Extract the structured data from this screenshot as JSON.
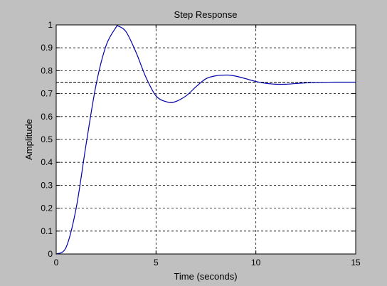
{
  "window": {
    "background": "#c0c0c0"
  },
  "chart_data": {
    "type": "line",
    "title": "Step Response",
    "xlabel": "Time (seconds)",
    "ylabel": "Amplitude",
    "xlim": [
      0,
      15
    ],
    "ylim": [
      0,
      1
    ],
    "xticks": [
      0,
      5,
      10,
      15
    ],
    "xtick_labels": [
      "0",
      "5",
      "10",
      "15"
    ],
    "yticks": [
      0,
      0.1,
      0.2,
      0.3,
      0.4,
      0.5,
      0.6,
      0.7,
      0.8,
      0.9,
      1
    ],
    "ytick_labels": [
      "0",
      "0.1",
      "0.2",
      "0.3",
      "0.4",
      "0.5",
      "0.6",
      "0.7",
      "0.8",
      "0.9",
      "1"
    ],
    "grid": true,
    "series": [
      {
        "color": "#0000aa",
        "x": [
          0,
          0.5,
          1.0,
          1.5,
          2.0,
          2.5,
          3.0,
          3.1,
          3.5,
          4.0,
          4.5,
          5.0,
          5.5,
          5.9,
          6.5,
          7.0,
          7.5,
          8.0,
          8.6,
          9.0,
          9.5,
          10.0,
          10.5,
          11.0,
          11.5,
          12.0,
          12.5,
          13.0,
          14.0,
          15.0
        ],
        "y": [
          0,
          0.03,
          0.2,
          0.48,
          0.74,
          0.91,
          0.99,
          0.995,
          0.97,
          0.88,
          0.77,
          0.69,
          0.665,
          0.663,
          0.69,
          0.73,
          0.765,
          0.778,
          0.781,
          0.776,
          0.765,
          0.753,
          0.745,
          0.741,
          0.741,
          0.744,
          0.747,
          0.749,
          0.75,
          0.75
        ]
      }
    ],
    "reference_line": {
      "y": 0.75,
      "style": "dashed",
      "color": "#000000"
    }
  }
}
